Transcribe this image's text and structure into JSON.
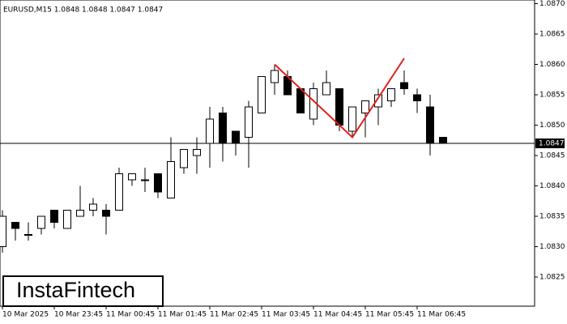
{
  "chart_data": {
    "type": "candlestick",
    "title": "EURUSD,M15  1.0848 1.0848 1.0847 1.0847",
    "brand": "InstaFintech",
    "categories": [
      "10 Mar 2025",
      null,
      null,
      null,
      "10 Mar 23:45",
      null,
      null,
      null,
      "11 Mar 00:45",
      null,
      null,
      null,
      "11 Mar 01:45",
      null,
      null,
      null,
      "11 Mar 02:45",
      null,
      null,
      null,
      "11 Mar 03:45",
      null,
      null,
      null,
      "11 Mar 04:45",
      null,
      null,
      null,
      "11 Mar 05:45",
      null,
      null,
      null,
      "11 Mar 06:45",
      null,
      null
    ],
    "open": [
      1.083,
      1.0834,
      1.0832,
      1.0833,
      1.0836,
      1.0833,
      1.0835,
      1.0836,
      1.0836,
      1.0836,
      1.0841,
      1.0841,
      1.0842,
      1.0838,
      1.0843,
      1.0845,
      1.0847,
      1.0852,
      1.0849,
      1.0848,
      1.0852,
      1.0857,
      1.0858,
      1.0856,
      1.0851,
      1.0855,
      1.0856,
      1.0849,
      1.0852,
      1.0853,
      1.0854,
      1.0857,
      1.0855,
      1.0853,
      1.0848
    ],
    "high": [
      1.0836,
      1.0834,
      1.0834,
      1.0835,
      1.0836,
      1.0836,
      1.084,
      1.0838,
      1.0837,
      1.0843,
      1.0842,
      1.0843,
      1.0842,
      1.0848,
      1.0846,
      1.0848,
      1.0853,
      1.0853,
      1.0849,
      1.0854,
      1.0858,
      1.086,
      1.0859,
      1.0856,
      1.0857,
      1.0859,
      1.0856,
      1.0853,
      1.0854,
      1.0856,
      1.0856,
      1.0859,
      1.0856,
      1.0855,
      1.0848
    ],
    "low": [
      1.0829,
      1.0831,
      1.0831,
      1.0832,
      1.0833,
      1.0833,
      1.0835,
      1.0835,
      1.0832,
      1.0836,
      1.084,
      1.0839,
      1.0838,
      1.0838,
      1.0842,
      1.0842,
      1.0843,
      1.0844,
      1.0845,
      1.0843,
      1.0852,
      1.0855,
      1.0855,
      1.0852,
      1.085,
      1.0855,
      1.0849,
      1.0848,
      1.0848,
      1.085,
      1.0853,
      1.0855,
      1.0852,
      1.0845,
      1.0847
    ],
    "close": [
      1.0835,
      1.0833,
      1.0832,
      1.0835,
      1.0834,
      1.0836,
      1.0836,
      1.0837,
      1.0835,
      1.0842,
      1.0842,
      1.0841,
      1.0839,
      1.0844,
      1.0846,
      1.0846,
      1.0851,
      1.0847,
      1.0847,
      1.0853,
      1.0858,
      1.0859,
      1.0855,
      1.0852,
      1.0856,
      1.0857,
      1.085,
      1.0853,
      1.0854,
      1.0855,
      1.0856,
      1.0856,
      1.0854,
      1.0847,
      1.0847
    ],
    "last_price": 1.0847,
    "pattern": {
      "color": "#e0201b",
      "x": [
        21,
        27,
        31
      ],
      "values": [
        1.086,
        1.0848,
        1.0861
      ]
    },
    "ylim": [
      1.08202,
      1.08706
    ],
    "yticks": [
      {
        "value": 1.0825,
        "label": "1.0825"
      },
      {
        "value": 1.083,
        "label": "1.0830"
      },
      {
        "value": 1.0835,
        "label": "1.0835"
      },
      {
        "value": 1.084,
        "label": "1.0840"
      },
      {
        "value": 1.0845,
        "label": "1.0845"
      },
      {
        "value": 1.085,
        "label": "1.0850"
      },
      {
        "value": 1.0855,
        "label": "1.0855"
      },
      {
        "value": 1.086,
        "label": "1.0860"
      },
      {
        "value": 1.0865,
        "label": "1.0865"
      },
      {
        "value": 1.087,
        "label": "1.0870"
      }
    ]
  }
}
